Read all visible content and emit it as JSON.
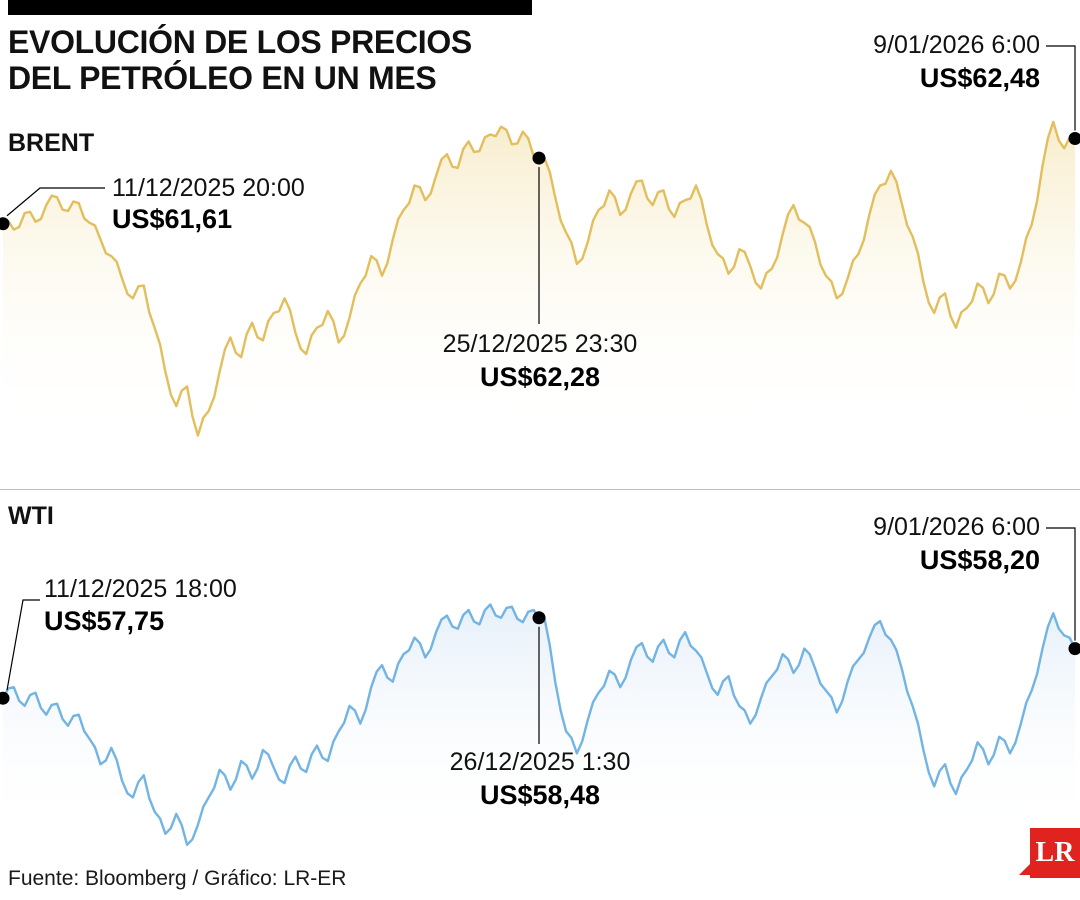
{
  "header": {
    "title_line1": "EVOLUCIÓN DE LOS PRECIOS",
    "title_line2": "DEL PETRÓLEO EN UN MES"
  },
  "footer": {
    "source": "Fuente: Bloomberg / Gráfico: LR-ER",
    "logo": "LR",
    "logo_color": "#E0231F"
  },
  "chart_data": [
    {
      "type": "area",
      "name": "BRENT",
      "unit": "US$",
      "line_color": "#E3BE5C",
      "fill_color": "#F7ECC9",
      "ylim": [
        59.2,
        62.75
      ],
      "annotations": {
        "start": {
          "label_date": "11/12/2025 20:00",
          "label_price": "US$61,61",
          "value": 61.61,
          "x": 0.0
        },
        "mid": {
          "label_date": "25/12/2025 23:30",
          "label_price": "US$62,28",
          "value": 62.28,
          "x": 0.5
        },
        "end": {
          "label_date": "9/01/2026 6:00",
          "label_price": "US$62,48",
          "value": 62.48,
          "x": 1.0
        }
      },
      "values": [
        61.61,
        61.55,
        61.72,
        61.63,
        61.8,
        61.88,
        61.74,
        61.82,
        61.62,
        61.45,
        61.28,
        61.05,
        60.85,
        60.98,
        60.55,
        60.1,
        59.75,
        59.95,
        59.45,
        59.7,
        60.1,
        60.45,
        60.25,
        60.6,
        60.42,
        60.7,
        60.85,
        60.5,
        60.28,
        60.55,
        60.72,
        60.4,
        60.65,
        61.0,
        61.28,
        61.08,
        61.45,
        61.75,
        62.0,
        61.85,
        62.1,
        62.32,
        62.18,
        62.45,
        62.35,
        62.52,
        62.6,
        62.42,
        62.55,
        62.3,
        62.28,
        61.88,
        61.52,
        61.2,
        61.42,
        61.75,
        61.95,
        61.7,
        61.92,
        62.05,
        61.8,
        61.95,
        61.68,
        61.85,
        62.0,
        61.6,
        61.3,
        61.1,
        61.35,
        61.18,
        60.95,
        61.15,
        61.5,
        61.8,
        61.62,
        61.42,
        61.08,
        60.85,
        61.05,
        61.3,
        61.7,
        62.0,
        62.15,
        61.82,
        61.48,
        61.02,
        60.7,
        60.9,
        60.55,
        60.75,
        61.0,
        60.8,
        61.1,
        60.95,
        61.22,
        61.6,
        62.2,
        62.65,
        62.38,
        62.48
      ]
    },
    {
      "type": "area",
      "name": "WTI",
      "unit": "US$",
      "line_color": "#72B4E3",
      "fill_color": "#E2EDF8",
      "ylim": [
        56.3,
        58.75
      ],
      "annotations": {
        "start": {
          "label_date": "11/12/2025 18:00",
          "label_price": "US$57,75",
          "value": 57.75,
          "x": 0.0
        },
        "mid": {
          "label_date": "26/12/2025 1:30",
          "label_price": "US$58,48",
          "value": 58.48,
          "x": 0.5
        },
        "end": {
          "label_date": "9/01/2026 6:00",
          "label_price": "US$58,20",
          "value": 58.2,
          "x": 1.0
        }
      },
      "values": [
        57.75,
        57.85,
        57.68,
        57.8,
        57.6,
        57.7,
        57.5,
        57.6,
        57.38,
        57.15,
        57.3,
        57.0,
        56.85,
        57.05,
        56.72,
        56.52,
        56.7,
        56.42,
        56.6,
        56.85,
        57.1,
        56.92,
        57.18,
        57.02,
        57.28,
        57.12,
        56.98,
        57.22,
        57.08,
        57.32,
        57.18,
        57.45,
        57.68,
        57.52,
        57.85,
        58.05,
        57.9,
        58.15,
        58.3,
        58.12,
        58.35,
        58.5,
        58.38,
        58.55,
        58.42,
        58.6,
        58.48,
        58.58,
        58.44,
        58.55,
        58.48,
        57.9,
        57.45,
        57.25,
        57.55,
        57.8,
        58.0,
        57.85,
        58.1,
        58.25,
        58.08,
        58.28,
        58.12,
        58.35,
        58.18,
        57.98,
        57.78,
        57.95,
        57.68,
        57.52,
        57.75,
        57.95,
        58.15,
        57.98,
        58.2,
        58.02,
        57.82,
        57.62,
        57.9,
        58.1,
        58.3,
        58.45,
        58.28,
        58.02,
        57.68,
        57.28,
        56.95,
        57.15,
        56.88,
        57.1,
        57.35,
        57.15,
        57.4,
        57.25,
        57.52,
        57.82,
        58.2,
        58.52,
        58.32,
        58.2
      ]
    }
  ]
}
